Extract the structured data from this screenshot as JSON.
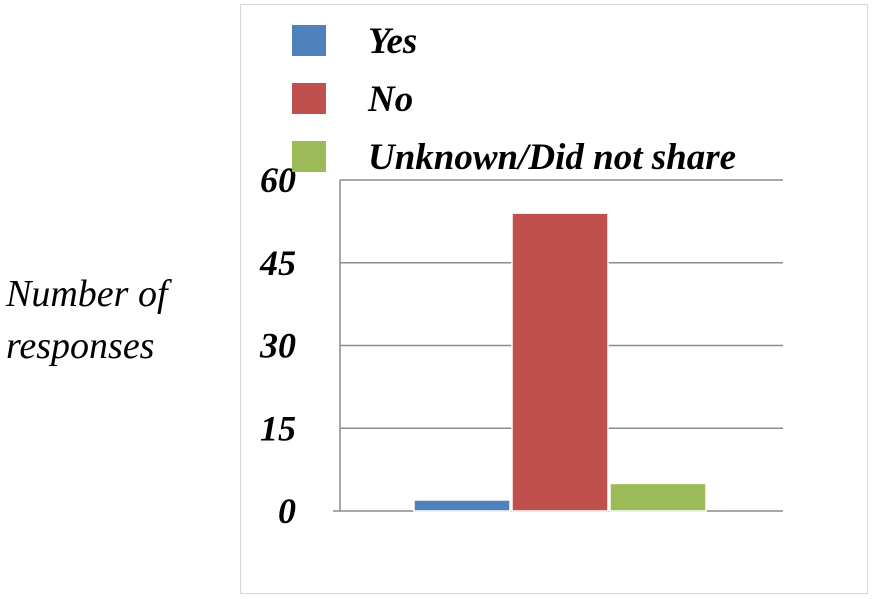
{
  "chart_data": {
    "type": "bar",
    "title": "",
    "xlabel": "",
    "ylabel": "Number of responses",
    "ylabel_lines": [
      "Number of",
      "responses"
    ],
    "categories": [
      ""
    ],
    "series": [
      {
        "name": "Yes",
        "values": [
          2
        ],
        "color": "#4f81bd"
      },
      {
        "name": "No",
        "values": [
          54
        ],
        "color": "#c0504d"
      },
      {
        "name": "Unknown/Did not share",
        "values": [
          5
        ],
        "color": "#9bbb59"
      }
    ],
    "ylim": [
      0,
      60
    ],
    "yticks": [
      "0",
      "15",
      "30",
      "45",
      "60"
    ],
    "grid": true,
    "legend_position": "top"
  }
}
